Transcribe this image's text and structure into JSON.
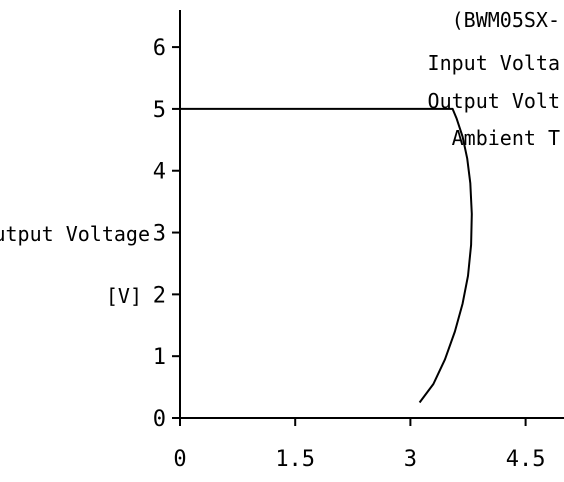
{
  "chart_data": {
    "type": "line",
    "title": "",
    "xlabel": "",
    "ylabel_lines": [
      "Output Voltage",
      "[V]"
    ],
    "xlim": [
      0,
      5
    ],
    "ylim": [
      0,
      6.6
    ],
    "x_ticks": [
      0,
      1.5,
      3,
      4.5
    ],
    "x_tick_labels": [
      "0",
      "1.5",
      "3",
      "4.5"
    ],
    "y_ticks": [
      0,
      1,
      2,
      3,
      4,
      5,
      6
    ],
    "y_tick_labels": [
      "0",
      "1",
      "2",
      "3",
      "4",
      "5",
      "6"
    ],
    "grid": false,
    "series": [
      {
        "x": [
          0,
          3.55,
          3.6,
          3.68,
          3.74,
          3.78,
          3.8,
          3.79,
          3.75,
          3.68,
          3.58,
          3.45,
          3.3,
          3.12
        ],
        "y": [
          5.0,
          5.0,
          4.85,
          4.55,
          4.2,
          3.8,
          3.3,
          2.8,
          2.3,
          1.85,
          1.4,
          0.95,
          0.55,
          0.25
        ]
      }
    ],
    "annotations": [
      "(BWM05SX-",
      "Input Volta",
      "Output Volt",
      "Ambient T"
    ],
    "line_color": "#000000"
  }
}
